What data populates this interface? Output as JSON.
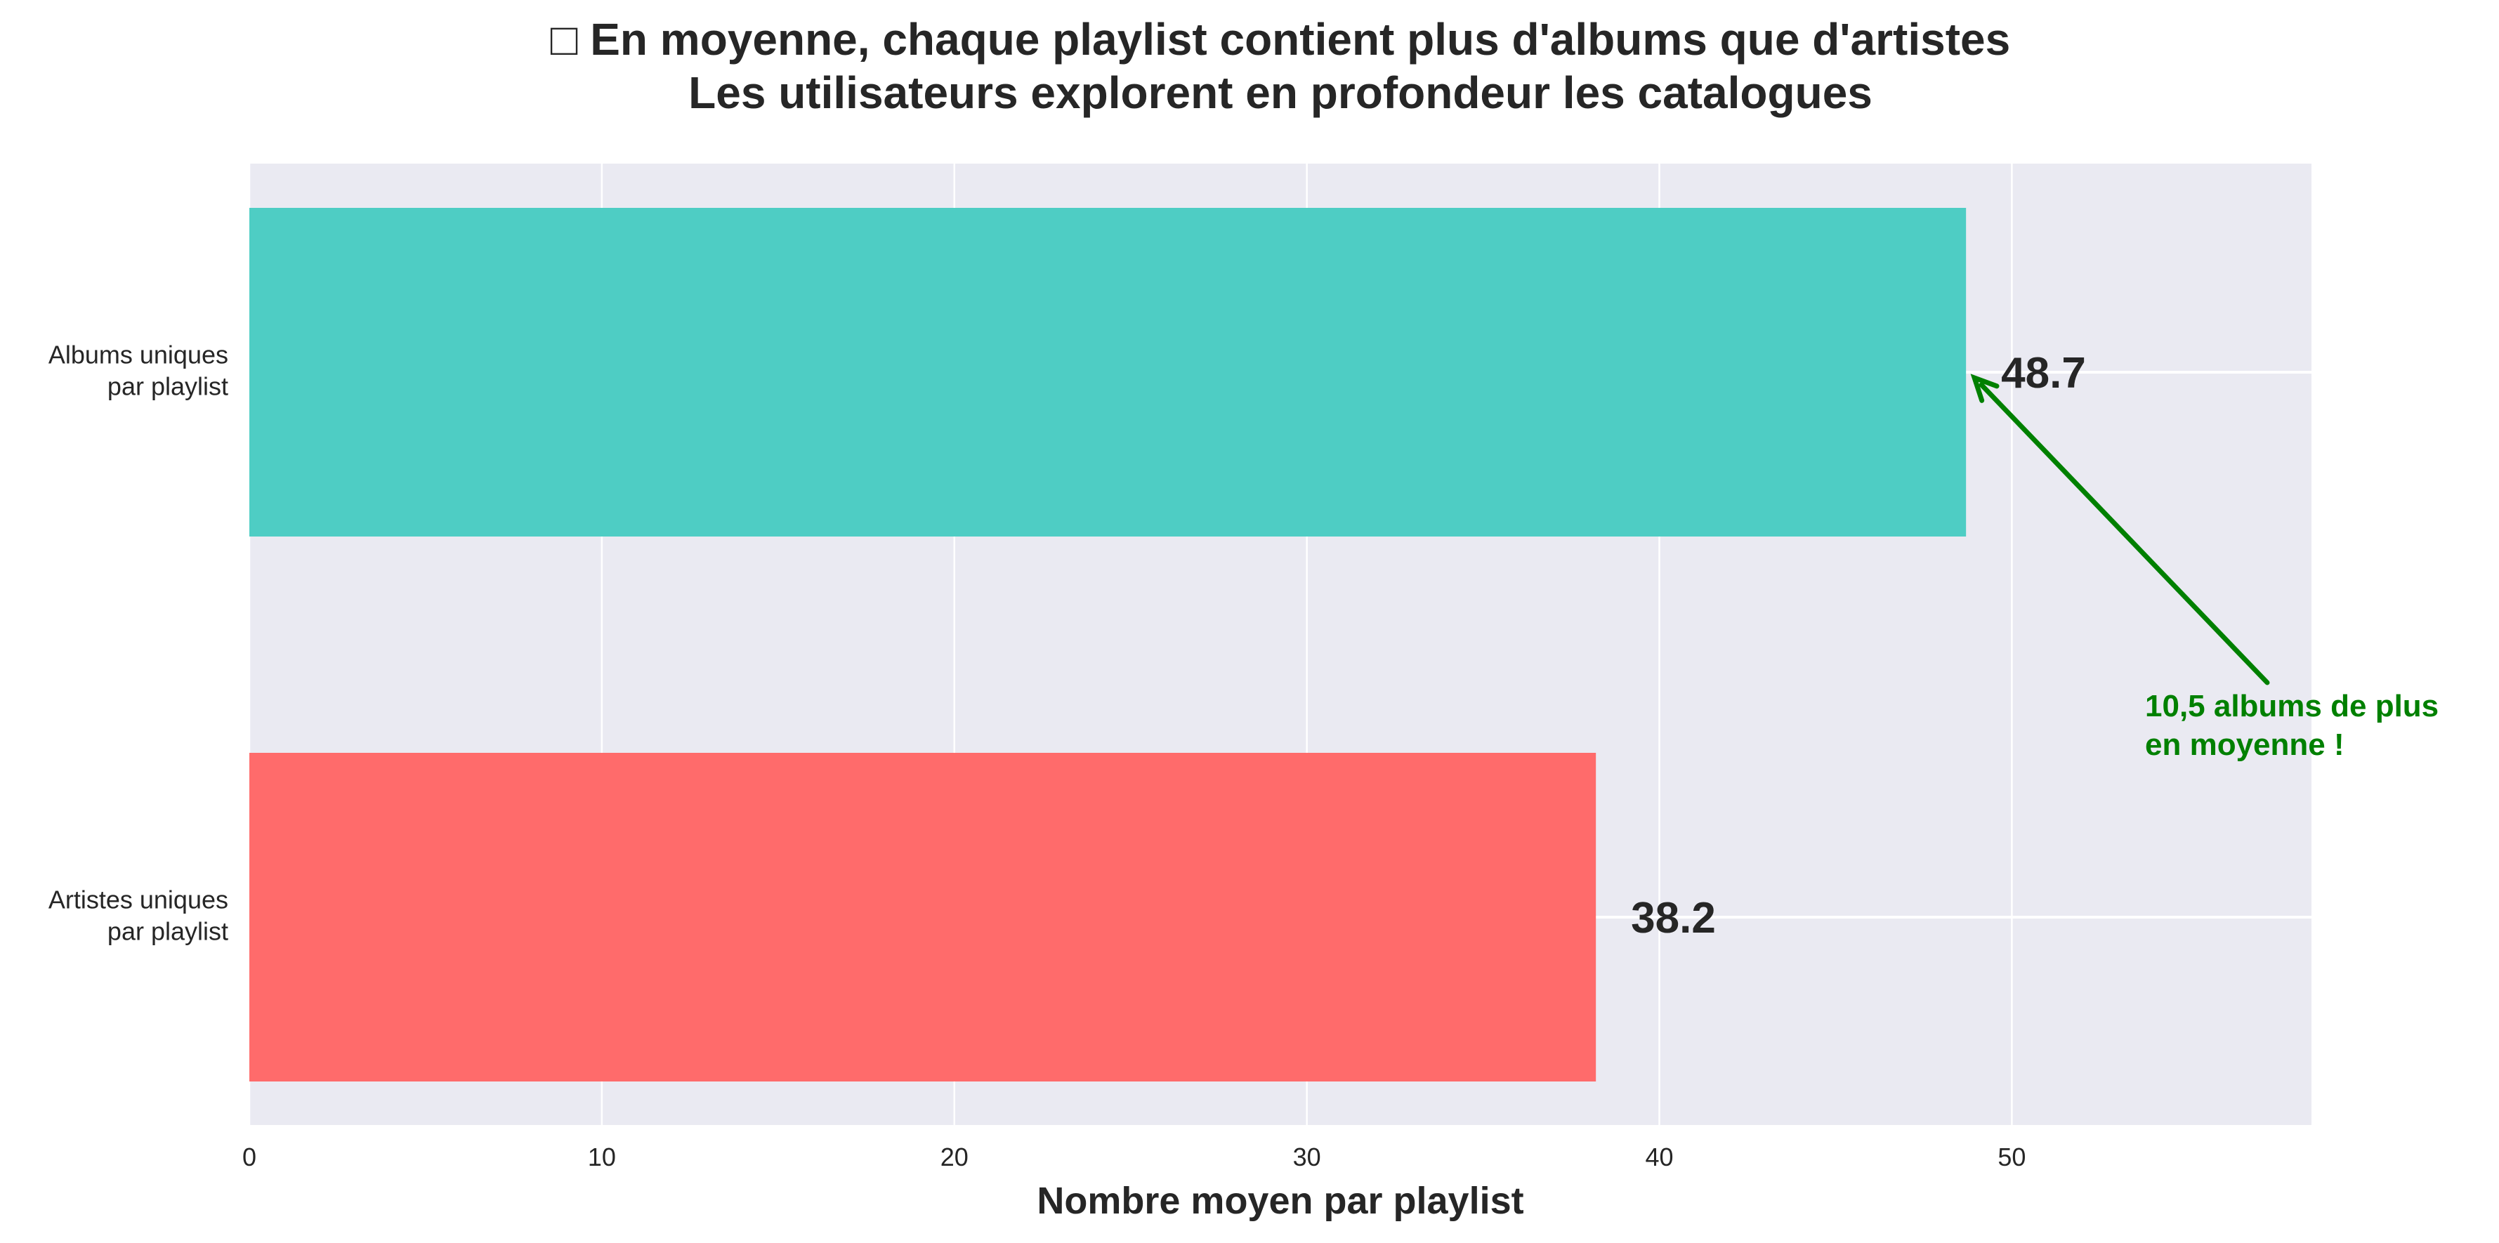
{
  "chart_data": {
    "type": "bar",
    "orientation": "horizontal",
    "title": "□ En moyenne, chaque playlist contient plus d'albums que d'artistes",
    "subtitle": "Les utilisateurs explorent en profondeur les catalogues",
    "xlabel": "Nombre moyen par playlist",
    "ylabel": "",
    "xlim": [
      0,
      58.5
    ],
    "xticks": [
      0,
      10,
      20,
      30,
      40,
      50
    ],
    "grid": true,
    "categories": [
      {
        "lines": [
          "Albums uniques",
          "par playlist"
        ]
      },
      {
        "lines": [
          "Artistes uniques",
          "par playlist"
        ]
      }
    ],
    "values": [
      48.7,
      38.2
    ],
    "value_labels": [
      "48.7",
      "38.2"
    ],
    "colors": [
      "#4ECDC4",
      "#FF6B6B"
    ],
    "annotation": {
      "lines": [
        "10,5 albums de plus",
        "en moyenne !"
      ],
      "color": "#008000",
      "points_to_value": 48.7
    },
    "background_color": "#EAEAF2",
    "grid_color": "#FFFFFF"
  }
}
